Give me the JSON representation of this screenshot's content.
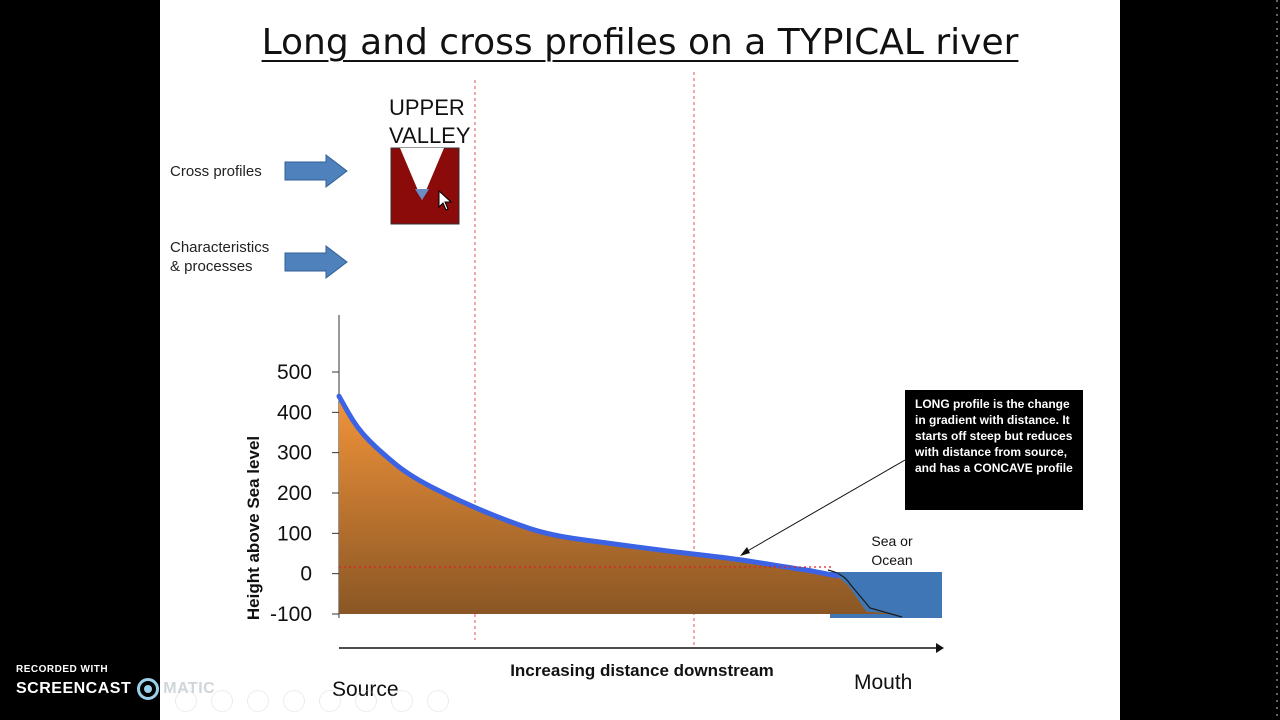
{
  "slide": {
    "title": "Long and cross profiles on a TYPICAL river",
    "upper_label_line1": "UPPER",
    "upper_label_line2": "VALLEY",
    "row_cross": "Cross profiles",
    "row_characteristics_line1": "Characteristics",
    "row_characteristics_line2": "& processes",
    "callout": "LONG profile is the change in gradient with distance.  It starts off steep but reduces with distance from source, and has a CONCAVE profile",
    "sea_label_line1": "Sea or",
    "sea_label_line2": "Ocean"
  },
  "chart_data": {
    "type": "area",
    "ylabel": "Height above Sea level",
    "xlabel": "Increasing distance downstream",
    "x_start_label": "Source",
    "x_end_label": "Mouth",
    "y_ticks": [
      "500",
      "400",
      "300",
      "200",
      "100",
      "0",
      "-100"
    ],
    "ylim": [
      -100,
      500
    ],
    "series": [
      {
        "x": [
          0,
          3,
          7,
          12,
          20,
          28,
          35,
          45,
          55,
          65,
          72,
          76,
          78,
          80,
          82.5
        ],
        "values": [
          440,
          360,
          300,
          240,
          180,
          130,
          95,
          75,
          55,
          38,
          22,
          12,
          8,
          2,
          -5
        ]
      }
    ]
  },
  "colors": {
    "land_top": "#f2943a",
    "land_bottom": "#8a5625",
    "river_line": "#3b63e3",
    "sea": "#3f76b5",
    "valley": "#8b0a0a",
    "arrow": "#4f81bd",
    "sea_level_line": "#e02020"
  },
  "recorder": {
    "small": "RECORDED WITH",
    "brand": "SCREENCAST",
    "brand_tail": "MATIC"
  }
}
